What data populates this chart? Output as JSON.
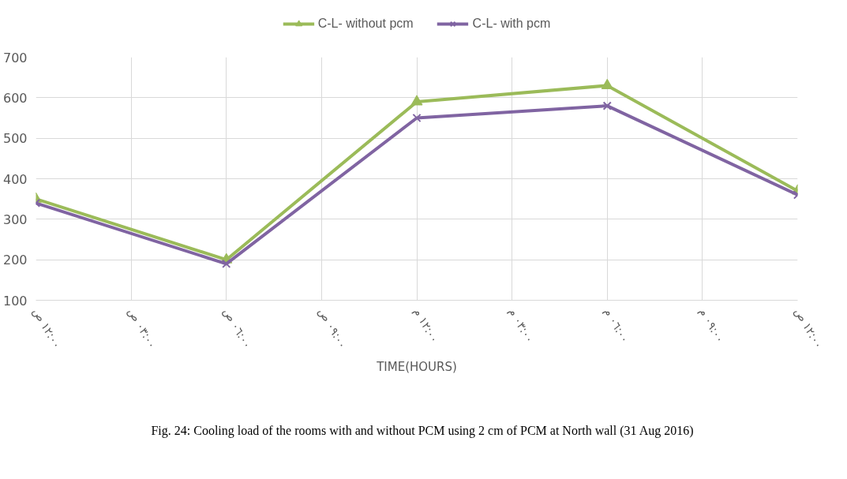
{
  "chart_data": {
    "type": "line",
    "xlabel": "TIME(HOURS)",
    "categories": [
      "١٢:٠٠ ص",
      "٠٣:٠٠ ص",
      "٠٦:٠٠ ص",
      "٠٩:٠٠ ص",
      "١٢:٠٠ م",
      "٠٣:٠٠ م",
      "٠٦:٠٠ م",
      "٠٩:٠٠ م",
      "١٢:٠٠ ص"
    ],
    "series": [
      {
        "name": "C-L- without pcm",
        "color": "#9bbb59",
        "marker": "triangle",
        "values": [
          350,
          null,
          200,
          null,
          590,
          null,
          630,
          null,
          370
        ]
      },
      {
        "name": "C-L- with pcm",
        "color": "#8064a2",
        "marker": "cross",
        "values": [
          340,
          null,
          190,
          null,
          550,
          null,
          580,
          null,
          360
        ]
      }
    ],
    "ylim": [
      100,
      700
    ],
    "yticks": [
      100,
      200,
      300,
      400,
      500,
      600,
      700
    ],
    "grid": true,
    "legend": "top",
    "annotations": [
      "Fig. 24: Cooling load of the rooms with and without PCM using 2 cm of PCM at North wall (31 Aug 2016)"
    ]
  }
}
